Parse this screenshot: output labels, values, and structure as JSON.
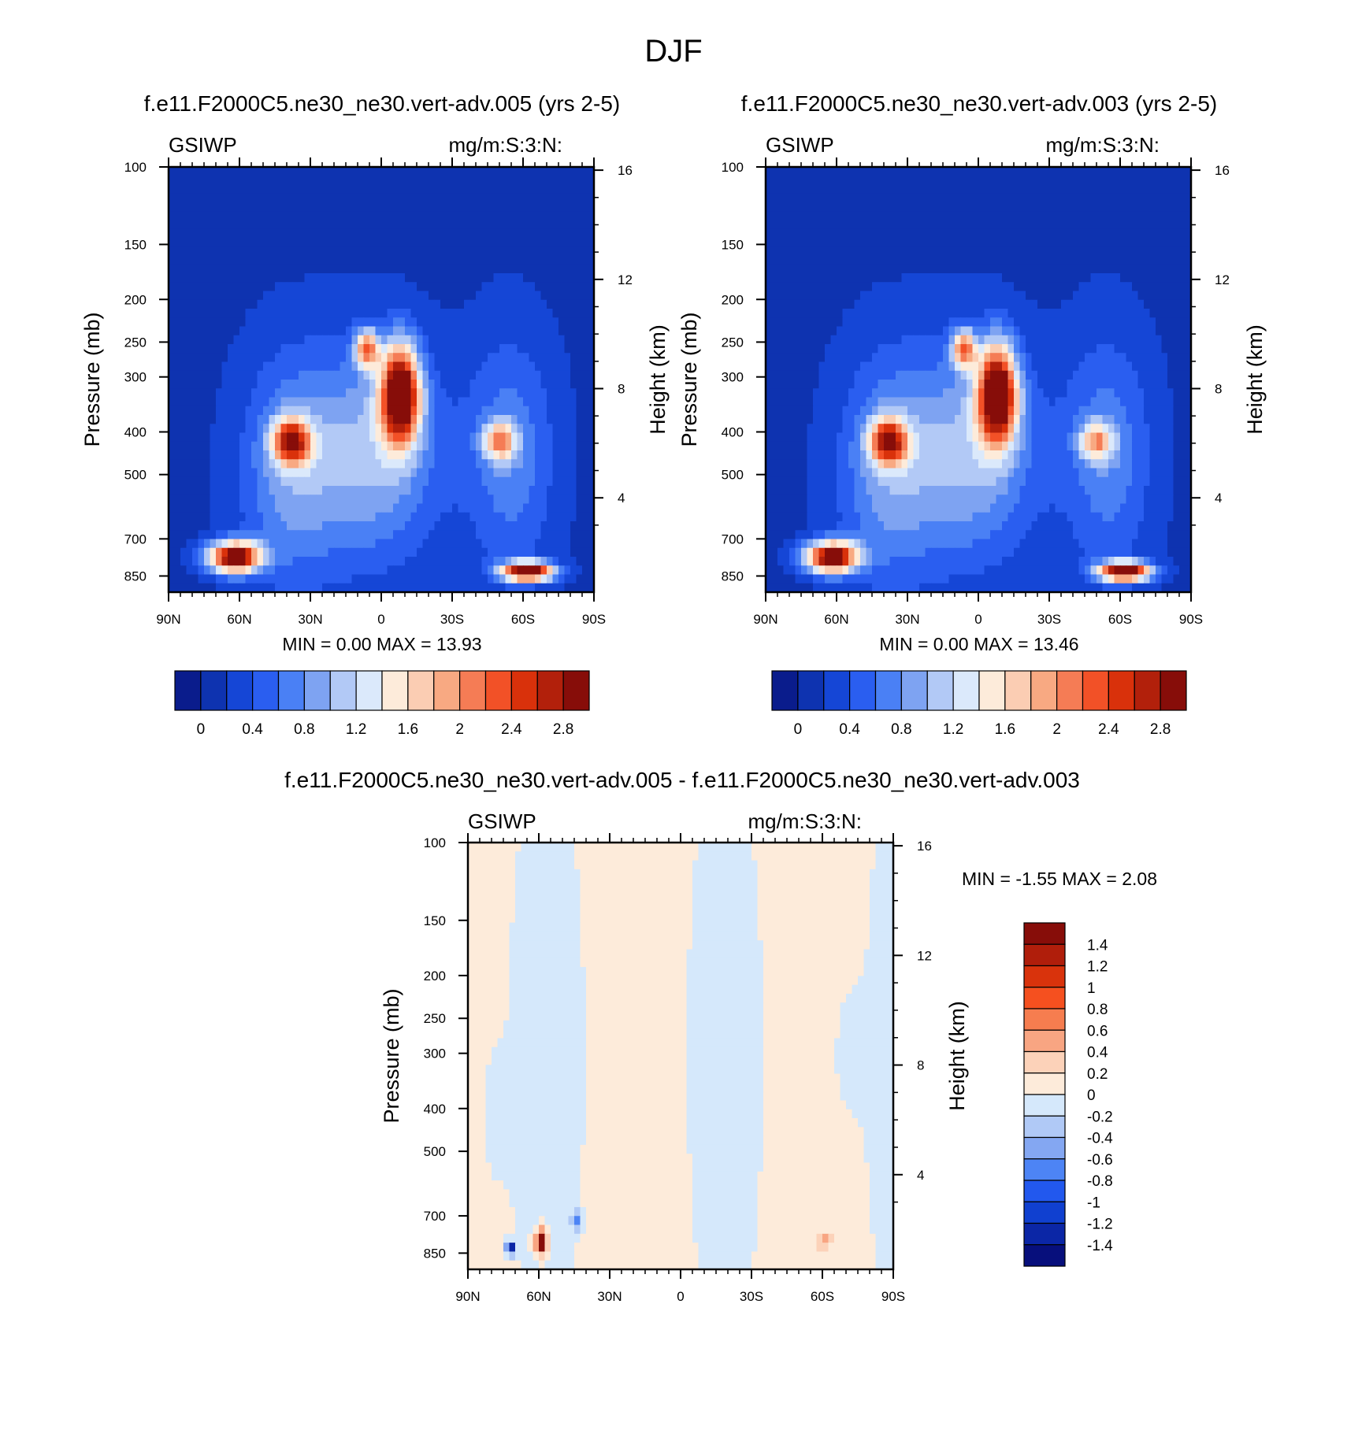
{
  "figure": {
    "title": "DJF"
  },
  "colormap_16": [
    "#0a1c8c",
    "#0e33b0",
    "#1546d6",
    "#2a5ef0",
    "#4a80f5",
    "#7ea3f2",
    "#b2c9f6",
    "#dbe9fb",
    "#fdebda",
    "#fbcdb3",
    "#f8a982",
    "#f57c55",
    "#f25127",
    "#d9310b",
    "#b2200b",
    "#870d09"
  ],
  "colormap_diff": [
    "#870d09",
    "#b01e0b",
    "#d9330c",
    "#f5501f",
    "#f67d4f",
    "#f8a582",
    "#fcd2b9",
    "#fdebda",
    "#d5e8fb",
    "#b0c9f6",
    "#84a7f2",
    "#4d84f5",
    "#2258ee",
    "#1040d0",
    "#0b26a6",
    "#070f7c"
  ],
  "chart_data": [
    {
      "id": "panel-1",
      "type": "heatmap",
      "title": "f.e11.F2000C5.ne30_ne30.vert-adv.005 (yrs 2-5)",
      "variable": "GSIWP",
      "units": "mg/m:S:3:N:",
      "ylabel": "Pressure (mb)",
      "y2label": "Height (km)",
      "xlabel": "",
      "x_ticks": [
        "90N",
        "60N",
        "30N",
        "0",
        "30S",
        "60S",
        "90S"
      ],
      "x_values": [
        90,
        60,
        30,
        0,
        -30,
        -60,
        -90
      ],
      "y_ticks": [
        100,
        150,
        200,
        250,
        300,
        400,
        500,
        700,
        850
      ],
      "y_scale": "log",
      "ylim": [
        100,
        925
      ],
      "y2_ticks": [
        16,
        12,
        8,
        4
      ],
      "min_label": "MIN =   0.00  MAX =  13.93",
      "min": 0.0,
      "max": 13.93,
      "colorbar_levels": [
        "0",
        "0.4",
        "0.8",
        "1.2",
        "1.6",
        "2",
        "2.4",
        "2.8"
      ],
      "features": [
        {
          "lat": 62,
          "p": 770,
          "value": 3.0,
          "sigma_lat": 11,
          "sigma_logp": 0.08
        },
        {
          "lat": 38,
          "p": 420,
          "value": 2.2,
          "sigma_lat": 8,
          "sigma_logp": 0.12
        },
        {
          "lat": -8,
          "p": 330,
          "value": 3.2,
          "sigma_lat": 8,
          "sigma_logp": 0.25
        },
        {
          "lat": 6,
          "p": 260,
          "value": 1.8,
          "sigma_lat": 5,
          "sigma_logp": 0.1
        },
        {
          "lat": -50,
          "p": 420,
          "value": 1.5,
          "sigma_lat": 7,
          "sigma_logp": 0.1
        },
        {
          "lat": -62,
          "p": 830,
          "value": 3.0,
          "sigma_lat": 11,
          "sigma_logp": 0.05
        }
      ]
    },
    {
      "id": "panel-2",
      "type": "heatmap",
      "title": "f.e11.F2000C5.ne30_ne30.vert-adv.003 (yrs 2-5)",
      "variable": "GSIWP",
      "units": "mg/m:S:3:N:",
      "ylabel": "Pressure (mb)",
      "y2label": "Height (km)",
      "xlabel": "",
      "x_ticks": [
        "90N",
        "60N",
        "30N",
        "0",
        "30S",
        "60S",
        "90S"
      ],
      "x_values": [
        90,
        60,
        30,
        0,
        -30,
        -60,
        -90
      ],
      "y_ticks": [
        100,
        150,
        200,
        250,
        300,
        400,
        500,
        700,
        850
      ],
      "y_scale": "log",
      "ylim": [
        100,
        925
      ],
      "y2_ticks": [
        16,
        12,
        8,
        4
      ],
      "min_label": "MIN =   0.00  MAX =  13.46",
      "min": 0.0,
      "max": 13.46,
      "colorbar_levels": [
        "0",
        "0.4",
        "0.8",
        "1.2",
        "1.6",
        "2",
        "2.4",
        "2.8"
      ],
      "features": [
        {
          "lat": 62,
          "p": 770,
          "value": 3.0,
          "sigma_lat": 11,
          "sigma_logp": 0.08
        },
        {
          "lat": 38,
          "p": 420,
          "value": 2.2,
          "sigma_lat": 8,
          "sigma_logp": 0.12
        },
        {
          "lat": -8,
          "p": 330,
          "value": 3.2,
          "sigma_lat": 8,
          "sigma_logp": 0.25
        },
        {
          "lat": 6,
          "p": 260,
          "value": 1.8,
          "sigma_lat": 5,
          "sigma_logp": 0.1
        },
        {
          "lat": -50,
          "p": 420,
          "value": 1.4,
          "sigma_lat": 7,
          "sigma_logp": 0.1
        },
        {
          "lat": -62,
          "p": 830,
          "value": 3.0,
          "sigma_lat": 11,
          "sigma_logp": 0.05
        }
      ]
    },
    {
      "id": "panel-diff",
      "type": "heatmap",
      "title": "f.e11.F2000C5.ne30_ne30.vert-adv.005 - f.e11.F2000C5.ne30_ne30.vert-adv.003",
      "variable": "GSIWP",
      "units": "mg/m:S:3:N:",
      "ylabel": "Pressure (mb)",
      "y2label": "Height (km)",
      "xlabel": "",
      "x_ticks": [
        "90N",
        "60N",
        "30N",
        "0",
        "30S",
        "60S",
        "90S"
      ],
      "x_values": [
        90,
        60,
        30,
        0,
        -30,
        -60,
        -90
      ],
      "y_ticks": [
        100,
        150,
        200,
        250,
        300,
        400,
        500,
        700,
        850
      ],
      "y_scale": "log",
      "ylim": [
        100,
        925
      ],
      "y2_ticks": [
        16,
        12,
        8,
        4
      ],
      "min_label": "MIN =  -1.55  MAX =   2.08",
      "min": -1.55,
      "max": 2.08,
      "colorbar_levels": [
        "1.4",
        "1.2",
        "1",
        "0.8",
        "0.6",
        "0.4",
        "0.2",
        "0",
        "-0.2",
        "-0.4",
        "-0.6",
        "-0.8",
        "-1",
        "-1.2",
        "-1.4"
      ],
      "features": [
        {
          "lat": 72,
          "p": 830,
          "value": -1.6,
          "sigma_lat": 1.6,
          "sigma_logp": 0.035
        },
        {
          "lat": 59,
          "p": 800,
          "value": 1.9,
          "sigma_lat": 2.2,
          "sigma_logp": 0.06
        },
        {
          "lat": 44,
          "p": 720,
          "value": -0.8,
          "sigma_lat": 2.2,
          "sigma_logp": 0.05
        },
        {
          "lat": -61,
          "p": 800,
          "value": 0.7,
          "sigma_lat": 3,
          "sigma_logp": 0.03
        },
        {
          "lat": 78,
          "p": 400,
          "value": -0.15,
          "sigma_lat": 6,
          "sigma_logp": 0.3
        },
        {
          "lat": -70,
          "p": 300,
          "value": -0.1,
          "sigma_lat": 8,
          "sigma_logp": 0.35
        }
      ]
    }
  ]
}
